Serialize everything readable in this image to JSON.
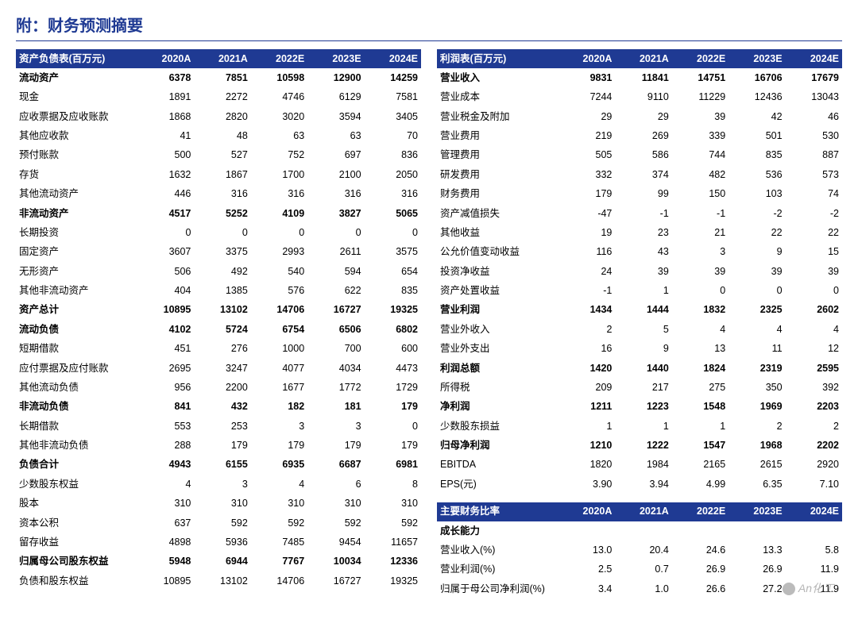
{
  "title": "附：财务预测摘要",
  "years": [
    "2020A",
    "2021A",
    "2022E",
    "2023E",
    "2024E"
  ],
  "colors": {
    "header_bg": "#1f3a93",
    "header_fg": "#ffffff",
    "title": "#1f3a93"
  },
  "watermark": "An化工",
  "balance": {
    "header": "资产负债表(百万元)",
    "rows": [
      {
        "l": "流动资产",
        "v": [
          "6378",
          "7851",
          "10598",
          "12900",
          "14259"
        ],
        "b": 1
      },
      {
        "l": "现金",
        "v": [
          "1891",
          "2272",
          "4746",
          "6129",
          "7581"
        ]
      },
      {
        "l": "应收票据及应收账款",
        "v": [
          "1868",
          "2820",
          "3020",
          "3594",
          "3405"
        ]
      },
      {
        "l": "其他应收款",
        "v": [
          "41",
          "48",
          "63",
          "63",
          "70"
        ]
      },
      {
        "l": "预付账款",
        "v": [
          "500",
          "527",
          "752",
          "697",
          "836"
        ]
      },
      {
        "l": "存货",
        "v": [
          "1632",
          "1867",
          "1700",
          "2100",
          "2050"
        ]
      },
      {
        "l": "其他流动资产",
        "v": [
          "446",
          "316",
          "316",
          "316",
          "316"
        ]
      },
      {
        "l": "非流动资产",
        "v": [
          "4517",
          "5252",
          "4109",
          "3827",
          "5065"
        ],
        "b": 1
      },
      {
        "l": "长期投资",
        "v": [
          "0",
          "0",
          "0",
          "0",
          "0"
        ]
      },
      {
        "l": "固定资产",
        "v": [
          "3607",
          "3375",
          "2993",
          "2611",
          "3575"
        ]
      },
      {
        "l": "无形资产",
        "v": [
          "506",
          "492",
          "540",
          "594",
          "654"
        ]
      },
      {
        "l": "其他非流动资产",
        "v": [
          "404",
          "1385",
          "576",
          "622",
          "835"
        ]
      },
      {
        "l": "资产总计",
        "v": [
          "10895",
          "13102",
          "14706",
          "16727",
          "19325"
        ],
        "b": 1
      },
      {
        "l": "流动负债",
        "v": [
          "4102",
          "5724",
          "6754",
          "6506",
          "6802"
        ],
        "b": 1
      },
      {
        "l": "短期借款",
        "v": [
          "451",
          "276",
          "1000",
          "700",
          "600"
        ]
      },
      {
        "l": "应付票据及应付账款",
        "v": [
          "2695",
          "3247",
          "4077",
          "4034",
          "4473"
        ]
      },
      {
        "l": "其他流动负债",
        "v": [
          "956",
          "2200",
          "1677",
          "1772",
          "1729"
        ]
      },
      {
        "l": "非流动负债",
        "v": [
          "841",
          "432",
          "182",
          "181",
          "179"
        ],
        "b": 1
      },
      {
        "l": "长期借款",
        "v": [
          "553",
          "253",
          "3",
          "3",
          "0"
        ]
      },
      {
        "l": "其他非流动负债",
        "v": [
          "288",
          "179",
          "179",
          "179",
          "179"
        ]
      },
      {
        "l": "负债合计",
        "v": [
          "4943",
          "6155",
          "6935",
          "6687",
          "6981"
        ],
        "b": 1
      },
      {
        "l": "少数股东权益",
        "v": [
          "4",
          "3",
          "4",
          "6",
          "8"
        ]
      },
      {
        "l": "股本",
        "v": [
          "310",
          "310",
          "310",
          "310",
          "310"
        ]
      },
      {
        "l": "资本公积",
        "v": [
          "637",
          "592",
          "592",
          "592",
          "592"
        ]
      },
      {
        "l": "留存收益",
        "v": [
          "4898",
          "5936",
          "7485",
          "9454",
          "11657"
        ]
      },
      {
        "l": "归属母公司股东权益",
        "v": [
          "5948",
          "6944",
          "7767",
          "10034",
          "12336"
        ],
        "b": 1
      },
      {
        "l": "负债和股东权益",
        "v": [
          "10895",
          "13102",
          "14706",
          "16727",
          "19325"
        ]
      }
    ]
  },
  "income": {
    "header": "利润表(百万元)",
    "rows": [
      {
        "l": "营业收入",
        "v": [
          "9831",
          "11841",
          "14751",
          "16706",
          "17679"
        ],
        "b": 1
      },
      {
        "l": "营业成本",
        "v": [
          "7244",
          "9110",
          "11229",
          "12436",
          "13043"
        ]
      },
      {
        "l": "营业税金及附加",
        "v": [
          "29",
          "29",
          "39",
          "42",
          "46"
        ]
      },
      {
        "l": "营业费用",
        "v": [
          "219",
          "269",
          "339",
          "501",
          "530"
        ]
      },
      {
        "l": "管理费用",
        "v": [
          "505",
          "586",
          "744",
          "835",
          "887"
        ]
      },
      {
        "l": "研发费用",
        "v": [
          "332",
          "374",
          "482",
          "536",
          "573"
        ]
      },
      {
        "l": "财务费用",
        "v": [
          "179",
          "99",
          "150",
          "103",
          "74"
        ]
      },
      {
        "l": "资产减值损失",
        "v": [
          "-47",
          "-1",
          "-1",
          "-2",
          "-2"
        ]
      },
      {
        "l": "其他收益",
        "v": [
          "19",
          "23",
          "21",
          "22",
          "22"
        ]
      },
      {
        "l": "公允价值变动收益",
        "v": [
          "116",
          "43",
          "3",
          "9",
          "15"
        ]
      },
      {
        "l": "投资净收益",
        "v": [
          "24",
          "39",
          "39",
          "39",
          "39"
        ]
      },
      {
        "l": "资产处置收益",
        "v": [
          "-1",
          "1",
          "0",
          "0",
          "0"
        ]
      },
      {
        "l": "营业利润",
        "v": [
          "1434",
          "1444",
          "1832",
          "2325",
          "2602"
        ],
        "b": 1
      },
      {
        "l": "营业外收入",
        "v": [
          "2",
          "5",
          "4",
          "4",
          "4"
        ]
      },
      {
        "l": "营业外支出",
        "v": [
          "16",
          "9",
          "13",
          "11",
          "12"
        ]
      },
      {
        "l": "利润总额",
        "v": [
          "1420",
          "1440",
          "1824",
          "2319",
          "2595"
        ],
        "b": 1
      },
      {
        "l": "所得税",
        "v": [
          "209",
          "217",
          "275",
          "350",
          "392"
        ]
      },
      {
        "l": "净利润",
        "v": [
          "1211",
          "1223",
          "1548",
          "1969",
          "2203"
        ],
        "b": 1
      },
      {
        "l": "少数股东损益",
        "v": [
          "1",
          "1",
          "1",
          "2",
          "2"
        ]
      },
      {
        "l": "归母净利润",
        "v": [
          "1210",
          "1222",
          "1547",
          "1968",
          "2202"
        ],
        "b": 1
      },
      {
        "l": "EBITDA",
        "v": [
          "1820",
          "1984",
          "2165",
          "2615",
          "2920"
        ]
      },
      {
        "l": "EPS(元)",
        "v": [
          "3.90",
          "3.94",
          "4.99",
          "6.35",
          "7.10"
        ]
      }
    ]
  },
  "ratios": {
    "header": "主要财务比率",
    "rows": [
      {
        "l": "成长能力",
        "v": [
          "",
          "",
          "",
          "",
          ""
        ],
        "b": 1
      },
      {
        "l": "营业收入(%)",
        "v": [
          "13.0",
          "20.4",
          "24.6",
          "13.3",
          "5.8"
        ]
      },
      {
        "l": "营业利润(%)",
        "v": [
          "2.5",
          "0.7",
          "26.9",
          "26.9",
          "11.9"
        ]
      },
      {
        "l": "归属于母公司净利润(%)",
        "v": [
          "3.4",
          "1.0",
          "26.6",
          "27.2",
          "11.9"
        ]
      }
    ]
  }
}
